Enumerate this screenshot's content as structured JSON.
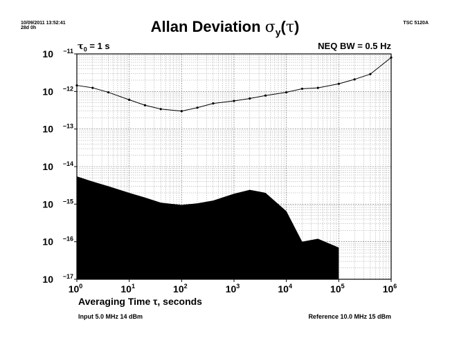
{
  "header": {
    "timestamp": "10/09/2011 13:52:41",
    "duration": "28d 0h",
    "model": "TSC 5120A"
  },
  "title": {
    "main": "Allan Deviation ",
    "sigma": "σ",
    "sub": "y",
    "paren_open": "(",
    "tau": "τ",
    "paren_close": ")"
  },
  "annotations": {
    "tau0_symbol": "τ",
    "tau0_sub": "0",
    "tau0_value": " = 1 s",
    "neq_bw": "NEQ BW = 0.5 Hz"
  },
  "xlabel": "Averaging Time τ, seconds",
  "footer": {
    "input": "Input 5.0 MHz 14 dBm",
    "reference": "Reference 10.0 MHz 15 dBm"
  },
  "colors": {
    "line": "#000000",
    "noise_floor_fill": "#000000",
    "grid": "#9a9a9a"
  },
  "chart_data": {
    "type": "line",
    "title": "Allan Deviation σy(τ)",
    "xlabel": "Averaging Time τ, seconds",
    "ylabel": "",
    "x_scale": "log",
    "y_scale": "log",
    "xlim": [
      1,
      1000000
    ],
    "ylim": [
      1e-17,
      1e-11
    ],
    "grid": true,
    "x_ticks": [
      {
        "base": "10",
        "exp": "0"
      },
      {
        "base": "10",
        "exp": "1"
      },
      {
        "base": "10",
        "exp": "2"
      },
      {
        "base": "10",
        "exp": "3"
      },
      {
        "base": "10",
        "exp": "4"
      },
      {
        "base": "10",
        "exp": "5"
      },
      {
        "base": "10",
        "exp": "6"
      }
    ],
    "y_ticks": [
      {
        "base": "10",
        "exp": "−11"
      },
      {
        "base": "10",
        "exp": "−12"
      },
      {
        "base": "10",
        "exp": "−13"
      },
      {
        "base": "10",
        "exp": "−14"
      },
      {
        "base": "10",
        "exp": "−15"
      },
      {
        "base": "10",
        "exp": "−16"
      },
      {
        "base": "10",
        "exp": "−17"
      }
    ],
    "series": [
      {
        "type": "line",
        "x": [
          1,
          2,
          4,
          10,
          20,
          40,
          100,
          200,
          400,
          1000,
          2000,
          4000,
          10000,
          20000,
          40000,
          100000,
          200000,
          400000,
          1000000
        ],
        "y": [
          1.45e-12,
          1.25e-12,
          9.5e-13,
          6e-13,
          4.3e-13,
          3.4e-13,
          3e-13,
          3.7e-13,
          4.8e-13,
          5.6e-13,
          6.5e-13,
          7.8e-13,
          9.5e-13,
          1.18e-12,
          1.25e-12,
          1.6e-12,
          2.1e-12,
          2.9e-12,
          8e-12
        ]
      },
      {
        "type": "area",
        "x": [
          1,
          2,
          4,
          10,
          20,
          40,
          100,
          200,
          400,
          1000,
          2000,
          4000,
          10000,
          20000,
          40000,
          100000
        ],
        "y": [
          5.5e-15,
          4e-15,
          3e-15,
          2e-15,
          1.5e-15,
          1.1e-15,
          9.5e-16,
          1.05e-15,
          1.25e-15,
          1.9e-15,
          2.4e-15,
          2e-15,
          6.5e-16,
          1e-16,
          1.2e-16,
          7e-17
        ]
      }
    ]
  }
}
